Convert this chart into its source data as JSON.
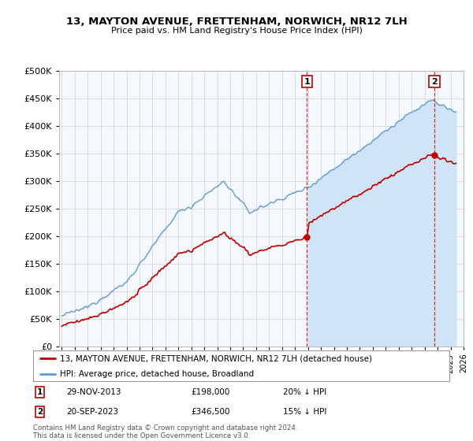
{
  "title": "13, MAYTON AVENUE, FRETTENHAM, NORWICH, NR12 7LH",
  "subtitle": "Price paid vs. HM Land Registry's House Price Index (HPI)",
  "legend_line1": "13, MAYTON AVENUE, FRETTENHAM, NORWICH, NR12 7LH (detached house)",
  "legend_line2": "HPI: Average price, detached house, Broadland",
  "annotation1_date": "29-NOV-2013",
  "annotation1_price": "£198,000",
  "annotation1_pct": "20% ↓ HPI",
  "annotation2_date": "20-SEP-2023",
  "annotation2_price": "£346,500",
  "annotation2_pct": "15% ↓ HPI",
  "footnote": "Contains HM Land Registry data © Crown copyright and database right 2024.\nThis data is licensed under the Open Government Licence v3.0.",
  "hpi_color": "#5b9bd5",
  "hpi_fill_color": "#d0e4f7",
  "price_color": "#c00000",
  "background_color": "#ffffff",
  "grid_color": "#d0d0d0",
  "ylim": [
    0,
    500000
  ],
  "yticks": [
    0,
    50000,
    100000,
    150000,
    200000,
    250000,
    300000,
    350000,
    400000,
    450000,
    500000
  ],
  "x_start_year": 1995,
  "x_end_year": 2026,
  "t1": 2013.9167,
  "t2": 2023.75,
  "p1": 198000,
  "p2": 346500
}
